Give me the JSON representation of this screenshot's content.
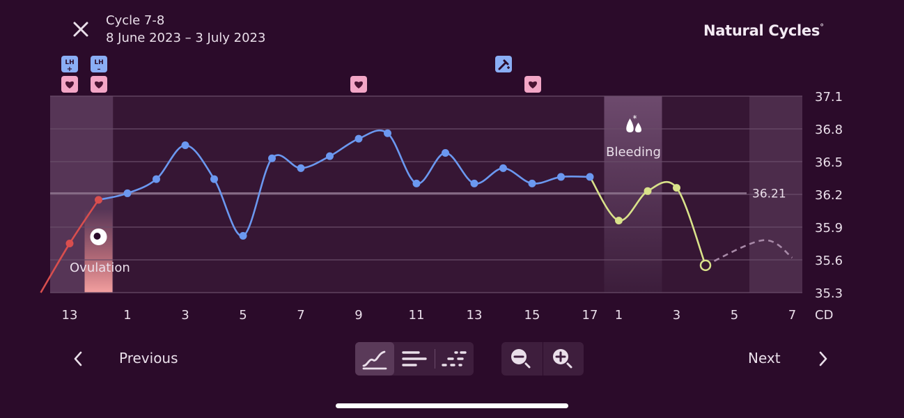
{
  "header": {
    "title": "Cycle 7-8",
    "date_range": "8 June 2023 – 3 July 2023",
    "brand": "Natural Cycles",
    "brand_mark": "°"
  },
  "colors": {
    "background": "#2b0b2a",
    "cycle7_line": "#d84e4e",
    "main_line": "#6b98f0",
    "cycle8_line": "#d9e28a",
    "coverline": "#8a708a",
    "event_heart_badge": "#f3a6c6",
    "event_test_badge": "#8aaef5",
    "ovulation_band": "#f08d8d"
  },
  "markers": {
    "lh_positive": "LH+",
    "lh_negative": "LH–",
    "lh_label": "LH",
    "ovulation_label": "Ovulation",
    "bleeding_label": "Bleeding",
    "coverline_label": "36.21"
  },
  "chart_data": {
    "type": "line",
    "ylim": [
      35.3,
      37.1
    ],
    "y_ticks": [
      "37.1",
      "36.8",
      "36.5",
      "36.2",
      "35.9",
      "35.6",
      "35.3"
    ],
    "x_ticks": [
      "13",
      "1",
      "3",
      "5",
      "7",
      "9",
      "11",
      "13",
      "15",
      "17",
      "1",
      "3",
      "5",
      "7"
    ],
    "x_unit": "CD",
    "coverline": 36.21,
    "series": [
      {
        "values": [
          {
            "cd": "12",
            "temp": 35.3
          },
          {
            "cd": "13",
            "temp": 35.75
          },
          {
            "cd": "14",
            "temp": 36.15
          }
        ]
      },
      {
        "values": [
          {
            "cd": "1",
            "temp": 36.21
          },
          {
            "cd": "2",
            "temp": 36.34
          },
          {
            "cd": "3",
            "temp": 36.65
          },
          {
            "cd": "4",
            "temp": 36.34
          },
          {
            "cd": "5",
            "temp": 35.82
          },
          {
            "cd": "6",
            "temp": 36.53
          },
          {
            "cd": "7",
            "temp": 36.44
          },
          {
            "cd": "8",
            "temp": 36.55
          },
          {
            "cd": "9",
            "temp": 36.71
          },
          {
            "cd": "10",
            "temp": 36.76
          },
          {
            "cd": "11",
            "temp": 36.3
          },
          {
            "cd": "12",
            "temp": 36.58
          },
          {
            "cd": "13",
            "temp": 36.3
          },
          {
            "cd": "14",
            "temp": 36.44
          },
          {
            "cd": "15",
            "temp": 36.3
          },
          {
            "cd": "16",
            "temp": 36.36
          },
          {
            "cd": "17",
            "temp": 36.36
          }
        ]
      },
      {
        "values": [
          {
            "cd": "1",
            "temp": 35.96
          },
          {
            "cd": "2",
            "temp": 36.23
          },
          {
            "cd": "3",
            "temp": 36.26
          },
          {
            "cd": "4",
            "temp": 35.55
          }
        ]
      },
      {
        "values": [
          {
            "cd": "4",
            "temp": 35.55
          },
          {
            "cd": "6",
            "temp": 35.78
          },
          {
            "cd": "7",
            "temp": 35.62
          }
        ],
        "style": "dashed"
      }
    ],
    "events": [
      {
        "cd": "13",
        "type": "lh-positive"
      },
      {
        "cd": "13",
        "type": "heart"
      },
      {
        "cd": "14",
        "type": "lh-negative"
      },
      {
        "cd": "14",
        "type": "heart"
      },
      {
        "cd": "9",
        "type": "heart"
      },
      {
        "cd": "14",
        "type": "pregnancy-test"
      },
      {
        "cd": "15",
        "type": "heart"
      }
    ]
  },
  "navigation": {
    "previous_label": "Previous",
    "next_label": "Next",
    "view_modes": [
      "curve-view",
      "bar-view",
      "dot-view"
    ],
    "active_view": "curve-view",
    "zoom": [
      "zoom-out",
      "zoom-in"
    ]
  }
}
